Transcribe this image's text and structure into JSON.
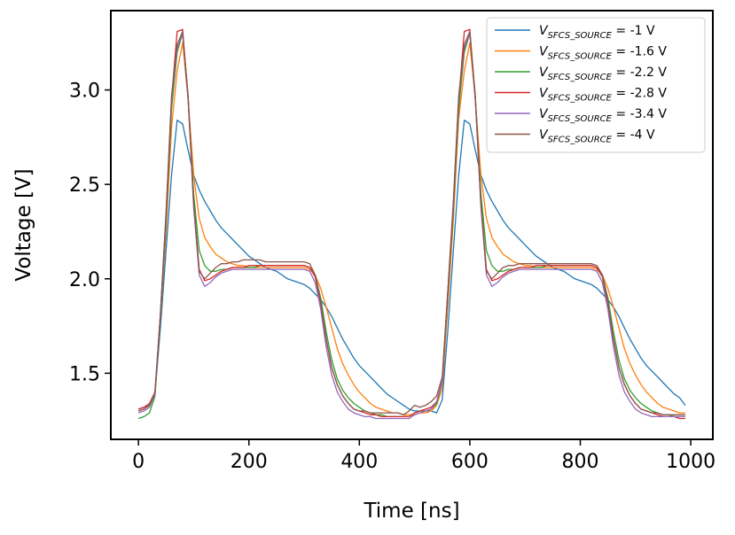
{
  "chart_data": {
    "type": "line",
    "title": "",
    "xlabel": "Time [ns]",
    "ylabel": "Voltage [V]",
    "xlim": [
      -50,
      1040
    ],
    "ylim": [
      1.15,
      3.42
    ],
    "xticks": [
      0,
      200,
      400,
      600,
      800,
      1000
    ],
    "yticks": [
      1.5,
      2.0,
      2.5,
      3.0
    ],
    "xtick_labels": [
      "0",
      "200",
      "400",
      "600",
      "800",
      "1000"
    ],
    "ytick_labels": [
      "1.5",
      "2.0",
      "2.5",
      "3.0"
    ],
    "grid": false,
    "legend_position": "top-right",
    "x": [
      0,
      10,
      20,
      30,
      40,
      50,
      60,
      70,
      80,
      90,
      100,
      110,
      120,
      130,
      140,
      150,
      160,
      170,
      180,
      190,
      200,
      210,
      220,
      230,
      240,
      250,
      260,
      270,
      280,
      290,
      300,
      310,
      320,
      330,
      340,
      350,
      360,
      370,
      380,
      390,
      400,
      410,
      420,
      430,
      440,
      450,
      460,
      470,
      480,
      490,
      500,
      510,
      520,
      530,
      540,
      550,
      560,
      570,
      580,
      590,
      600,
      610,
      620,
      630,
      640,
      650,
      660,
      670,
      680,
      690,
      700,
      710,
      720,
      730,
      740,
      750,
      760,
      770,
      780,
      790,
      800,
      810,
      820,
      830,
      840,
      850,
      860,
      870,
      880,
      890,
      900,
      910,
      920,
      930,
      940,
      950,
      960,
      970,
      980,
      990
    ],
    "series": [
      {
        "name": "-1 V",
        "legend_label": "V_SFCS_SOURCE = -1 V",
        "legend_main": "V",
        "legend_sub": "SFCS_SOURCE",
        "legend_suffix": " = -1 V",
        "color": "#1f77b4",
        "values": [
          1.31,
          1.32,
          1.33,
          1.39,
          1.75,
          2.15,
          2.55,
          2.84,
          2.82,
          2.68,
          2.55,
          2.47,
          2.41,
          2.36,
          2.31,
          2.27,
          2.24,
          2.21,
          2.18,
          2.15,
          2.12,
          2.1,
          2.08,
          2.06,
          2.05,
          2.04,
          2.02,
          2.0,
          1.99,
          1.98,
          1.97,
          1.95,
          1.92,
          1.89,
          1.85,
          1.8,
          1.74,
          1.68,
          1.63,
          1.58,
          1.54,
          1.51,
          1.48,
          1.45,
          1.42,
          1.39,
          1.37,
          1.35,
          1.33,
          1.31,
          1.3,
          1.3,
          1.3,
          1.3,
          1.29,
          1.36,
          1.72,
          2.14,
          2.55,
          2.84,
          2.82,
          2.68,
          2.55,
          2.47,
          2.41,
          2.36,
          2.31,
          2.27,
          2.24,
          2.21,
          2.18,
          2.15,
          2.12,
          2.1,
          2.08,
          2.06,
          2.05,
          2.04,
          2.02,
          2.0,
          1.99,
          1.98,
          1.97,
          1.95,
          1.92,
          1.89,
          1.85,
          1.8,
          1.74,
          1.68,
          1.63,
          1.58,
          1.54,
          1.51,
          1.48,
          1.45,
          1.42,
          1.39,
          1.37,
          1.33
        ]
      },
      {
        "name": "-1.6 V",
        "legend_label": "V_SFCS_SOURCE = -1.6 V",
        "legend_main": "V",
        "legend_sub": "SFCS_SOURCE",
        "legend_suffix": " = -1.6 V",
        "color": "#ff7f0e",
        "values": [
          1.3,
          1.31,
          1.33,
          1.4,
          1.8,
          2.25,
          2.8,
          3.1,
          3.25,
          2.95,
          2.55,
          2.32,
          2.22,
          2.17,
          2.13,
          2.11,
          2.09,
          2.08,
          2.07,
          2.07,
          2.06,
          2.06,
          2.06,
          2.06,
          2.06,
          2.06,
          2.06,
          2.06,
          2.06,
          2.06,
          2.06,
          2.05,
          2.02,
          1.95,
          1.85,
          1.74,
          1.63,
          1.55,
          1.49,
          1.44,
          1.4,
          1.37,
          1.34,
          1.32,
          1.31,
          1.3,
          1.29,
          1.29,
          1.28,
          1.28,
          1.28,
          1.29,
          1.29,
          1.3,
          1.33,
          1.42,
          1.85,
          2.3,
          2.85,
          3.1,
          3.25,
          2.95,
          2.55,
          2.32,
          2.22,
          2.17,
          2.13,
          2.11,
          2.09,
          2.08,
          2.07,
          2.07,
          2.06,
          2.06,
          2.06,
          2.06,
          2.06,
          2.06,
          2.06,
          2.06,
          2.06,
          2.06,
          2.06,
          2.05,
          2.02,
          1.95,
          1.85,
          1.74,
          1.63,
          1.55,
          1.49,
          1.44,
          1.4,
          1.37,
          1.34,
          1.32,
          1.31,
          1.3,
          1.29,
          1.29
        ]
      },
      {
        "name": "-2.2 V",
        "legend_label": "V_SFCS_SOURCE = -2.2 V",
        "legend_main": "V",
        "legend_sub": "SFCS_SOURCE",
        "legend_suffix": " = -2.2 V",
        "color": "#2ca02c",
        "values": [
          1.26,
          1.27,
          1.29,
          1.38,
          1.8,
          2.3,
          2.9,
          3.2,
          3.3,
          2.95,
          2.45,
          2.15,
          2.07,
          2.04,
          2.04,
          2.05,
          2.05,
          2.06,
          2.06,
          2.06,
          2.06,
          2.06,
          2.07,
          2.07,
          2.07,
          2.07,
          2.07,
          2.07,
          2.07,
          2.07,
          2.07,
          2.06,
          2.02,
          1.9,
          1.72,
          1.57,
          1.47,
          1.41,
          1.37,
          1.34,
          1.32,
          1.3,
          1.29,
          1.28,
          1.28,
          1.27,
          1.27,
          1.27,
          1.27,
          1.27,
          1.29,
          1.3,
          1.3,
          1.31,
          1.34,
          1.45,
          1.9,
          2.35,
          2.9,
          3.2,
          3.3,
          2.95,
          2.45,
          2.15,
          2.07,
          2.04,
          2.04,
          2.05,
          2.05,
          2.06,
          2.06,
          2.06,
          2.06,
          2.06,
          2.07,
          2.07,
          2.07,
          2.07,
          2.07,
          2.07,
          2.07,
          2.07,
          2.07,
          2.06,
          2.02,
          1.9,
          1.72,
          1.57,
          1.47,
          1.41,
          1.37,
          1.34,
          1.32,
          1.3,
          1.29,
          1.28,
          1.28,
          1.27,
          1.27,
          1.27
        ]
      },
      {
        "name": "-2.8 V",
        "legend_label": "V_SFCS_SOURCE = -2.8 V",
        "legend_main": "V",
        "legend_sub": "SFCS_SOURCE",
        "legend_suffix": " = -2.8 V",
        "color": "#d62728",
        "values": [
          1.31,
          1.32,
          1.34,
          1.4,
          1.82,
          2.33,
          2.95,
          3.31,
          3.32,
          2.95,
          2.4,
          2.05,
          1.99,
          2.0,
          2.02,
          2.04,
          2.05,
          2.06,
          2.06,
          2.06,
          2.07,
          2.07,
          2.07,
          2.07,
          2.07,
          2.07,
          2.07,
          2.07,
          2.07,
          2.07,
          2.07,
          2.06,
          2.01,
          1.87,
          1.68,
          1.53,
          1.44,
          1.38,
          1.34,
          1.31,
          1.3,
          1.29,
          1.28,
          1.28,
          1.27,
          1.27,
          1.27,
          1.27,
          1.27,
          1.27,
          1.29,
          1.3,
          1.31,
          1.32,
          1.35,
          1.46,
          1.92,
          2.38,
          2.95,
          3.31,
          3.32,
          2.95,
          2.4,
          2.05,
          1.99,
          2.0,
          2.02,
          2.04,
          2.05,
          2.06,
          2.06,
          2.06,
          2.07,
          2.07,
          2.07,
          2.07,
          2.07,
          2.07,
          2.07,
          2.07,
          2.07,
          2.07,
          2.07,
          2.06,
          2.01,
          1.87,
          1.68,
          1.53,
          1.44,
          1.38,
          1.34,
          1.31,
          1.3,
          1.29,
          1.28,
          1.27,
          1.27,
          1.27,
          1.26,
          1.26
        ]
      },
      {
        "name": "-3.4 V",
        "legend_label": "V_SFCS_SOURCE = -3.4 V",
        "legend_main": "V",
        "legend_sub": "SFCS_SOURCE",
        "legend_suffix": " = -3.4 V",
        "color": "#9467bd",
        "values": [
          1.29,
          1.3,
          1.32,
          1.39,
          1.82,
          2.34,
          2.95,
          3.22,
          3.3,
          2.96,
          2.38,
          2.02,
          1.96,
          1.98,
          2.01,
          2.03,
          2.04,
          2.05,
          2.05,
          2.05,
          2.05,
          2.05,
          2.05,
          2.05,
          2.05,
          2.05,
          2.05,
          2.05,
          2.05,
          2.05,
          2.05,
          2.04,
          1.98,
          1.84,
          1.64,
          1.49,
          1.4,
          1.35,
          1.31,
          1.29,
          1.28,
          1.27,
          1.27,
          1.26,
          1.26,
          1.26,
          1.26,
          1.26,
          1.26,
          1.26,
          1.28,
          1.29,
          1.3,
          1.31,
          1.35,
          1.46,
          1.92,
          2.38,
          2.95,
          3.22,
          3.3,
          2.96,
          2.38,
          2.02,
          1.96,
          1.98,
          2.01,
          2.03,
          2.04,
          2.05,
          2.05,
          2.05,
          2.05,
          2.05,
          2.05,
          2.05,
          2.05,
          2.05,
          2.05,
          2.05,
          2.05,
          2.05,
          2.05,
          2.04,
          1.98,
          1.84,
          1.64,
          1.49,
          1.4,
          1.35,
          1.31,
          1.29,
          1.28,
          1.27,
          1.27,
          1.27,
          1.27,
          1.27,
          1.27,
          1.27
        ]
      },
      {
        "name": "-4 V",
        "legend_label": "V_SFCS_SOURCE = -4 V",
        "legend_main": "V",
        "legend_sub": "SFCS_SOURCE",
        "legend_suffix": " = -4 V",
        "color": "#8c564b",
        "values": [
          1.3,
          1.31,
          1.33,
          1.4,
          1.83,
          2.35,
          2.97,
          3.24,
          3.31,
          2.97,
          2.4,
          2.04,
          2.0,
          2.03,
          2.06,
          2.08,
          2.08,
          2.09,
          2.09,
          2.1,
          2.1,
          2.1,
          2.1,
          2.09,
          2.09,
          2.09,
          2.09,
          2.09,
          2.09,
          2.09,
          2.09,
          2.08,
          2.02,
          1.88,
          1.68,
          1.53,
          1.44,
          1.38,
          1.34,
          1.31,
          1.3,
          1.3,
          1.29,
          1.29,
          1.29,
          1.29,
          1.29,
          1.29,
          1.28,
          1.3,
          1.33,
          1.32,
          1.33,
          1.35,
          1.38,
          1.48,
          1.93,
          2.4,
          2.97,
          3.24,
          3.31,
          2.97,
          2.4,
          2.04,
          2.0,
          2.03,
          2.06,
          2.07,
          2.07,
          2.08,
          2.08,
          2.08,
          2.08,
          2.08,
          2.08,
          2.08,
          2.08,
          2.08,
          2.08,
          2.08,
          2.08,
          2.08,
          2.08,
          2.07,
          2.02,
          1.88,
          1.68,
          1.53,
          1.44,
          1.38,
          1.34,
          1.31,
          1.3,
          1.29,
          1.29,
          1.28,
          1.28,
          1.28,
          1.28,
          1.28
        ]
      }
    ]
  }
}
